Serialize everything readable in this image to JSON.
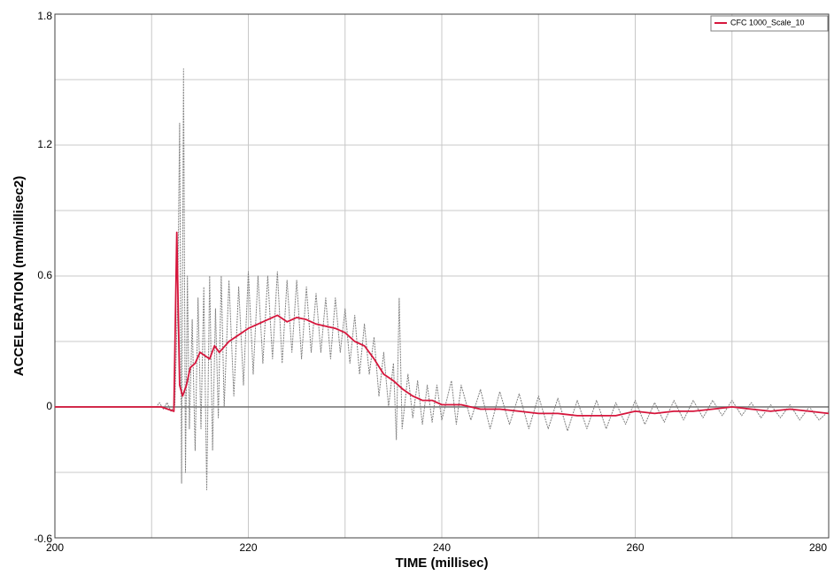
{
  "chart_data": {
    "type": "line",
    "xlabel": "TIME (millisec)",
    "ylabel": "ACCELERATION (mm/millisec2)",
    "xlim": [
      200,
      280
    ],
    "xticks": [
      200,
      220,
      240,
      260,
      280
    ],
    "xminor": [
      210,
      230,
      250,
      270
    ],
    "ylim": [
      -0.6,
      1.8
    ],
    "yticks": [
      -0.6,
      0,
      0.6,
      1.2,
      1.8
    ],
    "yminor": [
      -0.3,
      0.3,
      0.9,
      1.5
    ],
    "grid": true,
    "legend": "upper right",
    "series": [
      {
        "color": "#808080",
        "dashed": true,
        "x": [
          200,
          210.5,
          210.8,
          211.2,
          211.6,
          212,
          212.4,
          212.7,
          212.9,
          213.1,
          213.3,
          213.5,
          213.7,
          213.9,
          214.2,
          214.5,
          214.8,
          215.1,
          215.4,
          215.7,
          216,
          216.3,
          216.6,
          216.9,
          217.2,
          217.5,
          218,
          218.5,
          219,
          219.5,
          220,
          220.5,
          221,
          221.5,
          222,
          222.5,
          223,
          223.5,
          224,
          224.5,
          225,
          225.5,
          226,
          226.5,
          227,
          227.5,
          228,
          228.5,
          229,
          229.5,
          230,
          230.5,
          231,
          231.5,
          232,
          232.5,
          233,
          233.5,
          234,
          234.5,
          235,
          235.3,
          235.6,
          235.9,
          236.5,
          237,
          237.5,
          238,
          238.5,
          239,
          239.5,
          240,
          241,
          241.5,
          242,
          243,
          244,
          245,
          246,
          247,
          248,
          249,
          250,
          251,
          252,
          253,
          254,
          255,
          256,
          257,
          258,
          259,
          260,
          261,
          262,
          263,
          264,
          265,
          266,
          267,
          268,
          269,
          270,
          271,
          272,
          273,
          274,
          275,
          276,
          277,
          278,
          279,
          280
        ],
        "values": [
          0,
          0,
          0.02,
          -0.01,
          0.02,
          -0.02,
          0.01,
          0.5,
          1.3,
          -0.35,
          1.55,
          -0.3,
          0.6,
          -0.1,
          0.4,
          -0.2,
          0.5,
          -0.1,
          0.55,
          -0.38,
          0.6,
          -0.2,
          0.45,
          -0.05,
          0.6,
          0,
          0.58,
          0.05,
          0.55,
          0.1,
          0.62,
          0.15,
          0.6,
          0.2,
          0.6,
          0.22,
          0.62,
          0.2,
          0.58,
          0.25,
          0.58,
          0.22,
          0.55,
          0.25,
          0.52,
          0.25,
          0.5,
          0.22,
          0.5,
          0.25,
          0.45,
          0.2,
          0.42,
          0.15,
          0.38,
          0.15,
          0.32,
          0.05,
          0.25,
          0,
          0.2,
          -0.15,
          0.5,
          -0.1,
          0.15,
          -0.05,
          0.12,
          -0.08,
          0.1,
          -0.07,
          0.1,
          -0.06,
          0.12,
          -0.08,
          0.1,
          -0.06,
          0.08,
          -0.1,
          0.07,
          -0.08,
          0.06,
          -0.1,
          0.05,
          -0.1,
          0.04,
          -0.11,
          0.03,
          -0.1,
          0.03,
          -0.1,
          0.02,
          -0.08,
          0.03,
          -0.08,
          0.02,
          -0.07,
          0.03,
          -0.06,
          0.03,
          -0.05,
          0.03,
          -0.04,
          0.03,
          -0.04,
          0.02,
          -0.05,
          0.01,
          -0.05,
          0.01,
          -0.06,
          0,
          -0.06,
          -0.02
        ]
      },
      {
        "name": "CFC 1000_Scale_10",
        "color": "#d6163c",
        "x": [
          200,
          211,
          212.3,
          212.6,
          212.9,
          213.2,
          213.6,
          214,
          214.5,
          215,
          216,
          216.5,
          217,
          218,
          219,
          220,
          221,
          222,
          223,
          224,
          225,
          226,
          227,
          228,
          229,
          230,
          231,
          232,
          233,
          234,
          235,
          236,
          237,
          238,
          239,
          240,
          242,
          244,
          246,
          248,
          250,
          252,
          254,
          256,
          258,
          260,
          262,
          264,
          266,
          268,
          270,
          272,
          274,
          276,
          278,
          280
        ],
        "values": [
          0,
          0,
          -0.02,
          0.8,
          0.1,
          0.05,
          0.1,
          0.18,
          0.2,
          0.25,
          0.22,
          0.28,
          0.25,
          0.3,
          0.33,
          0.36,
          0.38,
          0.4,
          0.42,
          0.39,
          0.41,
          0.4,
          0.38,
          0.37,
          0.36,
          0.34,
          0.3,
          0.28,
          0.22,
          0.15,
          0.12,
          0.08,
          0.05,
          0.03,
          0.03,
          0.01,
          0.01,
          -0.01,
          -0.01,
          -0.02,
          -0.03,
          -0.03,
          -0.04,
          -0.04,
          -0.04,
          -0.02,
          -0.03,
          -0.02,
          -0.02,
          -0.01,
          0,
          -0.01,
          -0.02,
          -0.01,
          -0.02,
          -0.03
        ]
      }
    ]
  }
}
